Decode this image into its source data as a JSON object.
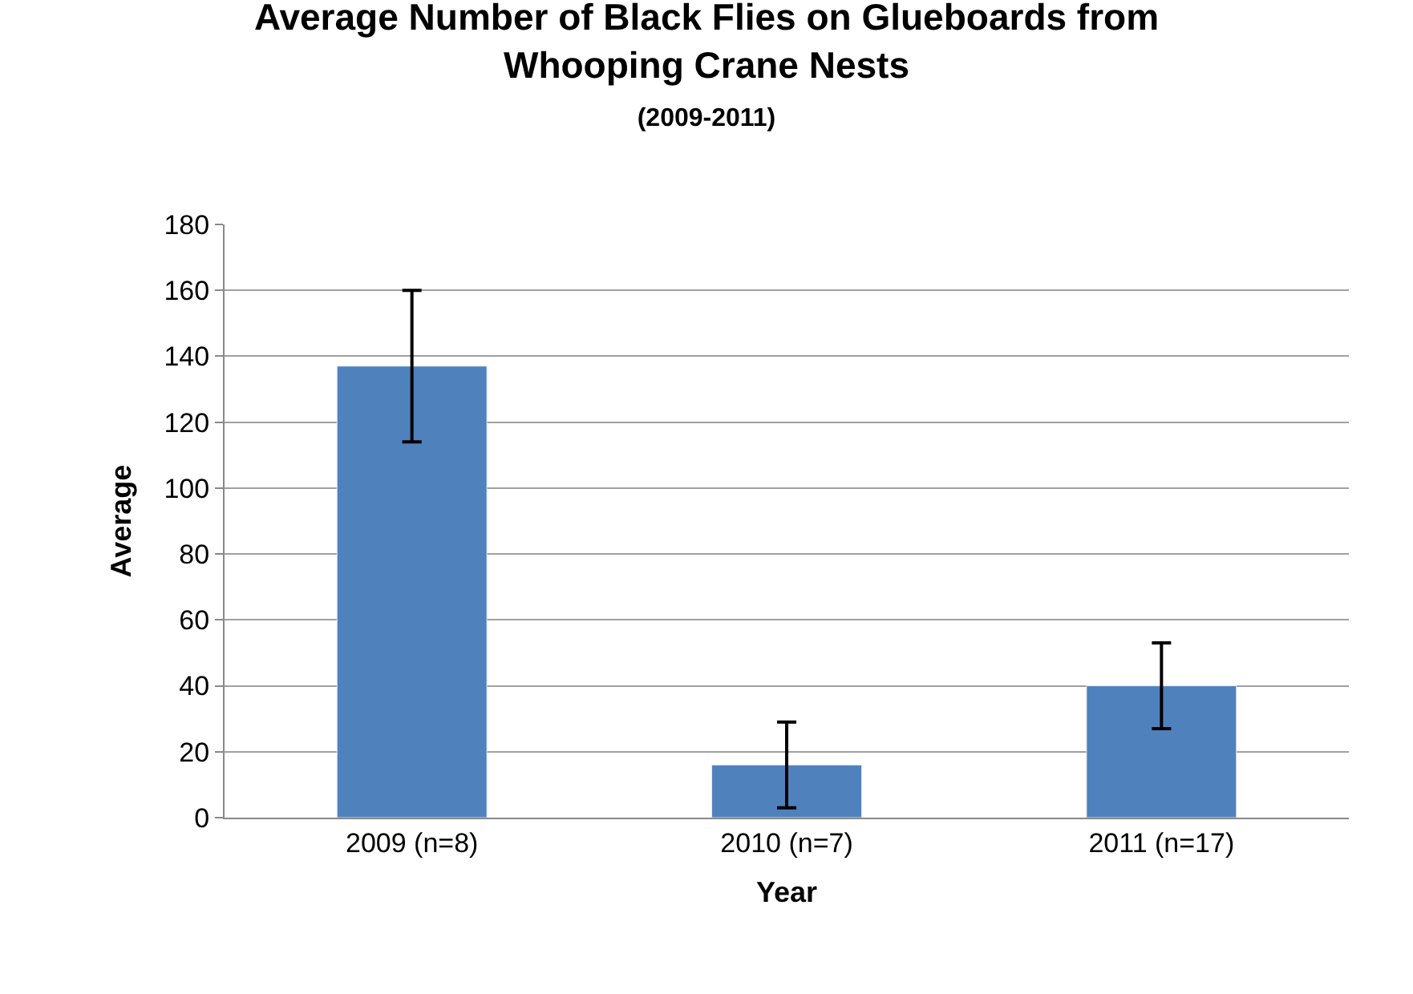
{
  "chart_data": {
    "type": "bar",
    "title": "Average Number of Black Flies on Glueboards from Whooping Crane Nests",
    "subtitle": "(2009-2011)",
    "xlabel": "Year",
    "ylabel": "Average",
    "categories": [
      "2009 (n=8)",
      "2010 (n=7)",
      "2011 (n=17)"
    ],
    "series": [
      {
        "color": "#4f81bd",
        "values": [
          137,
          16,
          40
        ],
        "errors": [
          23,
          13,
          13
        ]
      }
    ],
    "ylim": [
      0,
      180
    ],
    "yticks": [
      0,
      20,
      40,
      60,
      80,
      100,
      120,
      140,
      160,
      180
    ],
    "grid": "y"
  }
}
